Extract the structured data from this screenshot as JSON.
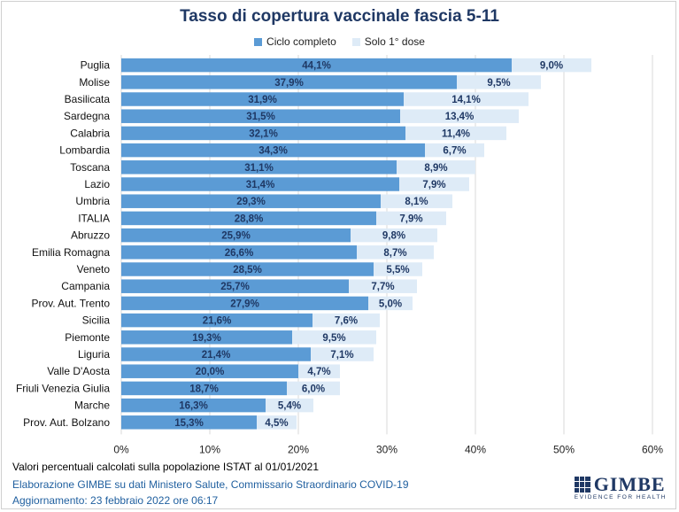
{
  "chart_data": {
    "type": "bar",
    "orientation": "horizontal",
    "stacked": true,
    "title": "Tasso di copertura vaccinale fascia 5-11",
    "categories": [
      "Puglia",
      "Molise",
      "Basilicata",
      "Sardegna",
      "Calabria",
      "Lombardia",
      "Toscana",
      "Lazio",
      "Umbria",
      "ITALIA",
      "Abruzzo",
      "Emilia Romagna",
      "Veneto",
      "Campania",
      "Prov. Aut. Trento",
      "Sicilia",
      "Piemonte",
      "Liguria",
      "Valle D'Aosta",
      "Friuli Venezia Giulia",
      "Marche",
      "Prov. Aut. Bolzano"
    ],
    "series": [
      {
        "name": "Ciclo completo",
        "color": "#5b9bd5",
        "values": [
          44.1,
          37.9,
          31.9,
          31.5,
          32.1,
          34.3,
          31.1,
          31.4,
          29.3,
          28.8,
          25.9,
          26.6,
          28.5,
          25.7,
          27.9,
          21.6,
          19.3,
          21.4,
          20.0,
          18.7,
          16.3,
          15.3
        ],
        "labels": [
          "44,1%",
          "37,9%",
          "31,9%",
          "31,5%",
          "32,1%",
          "34,3%",
          "31,1%",
          "31,4%",
          "29,3%",
          "28,8%",
          "25,9%",
          "26,6%",
          "28,5%",
          "25,7%",
          "27,9%",
          "21,6%",
          "19,3%",
          "21,4%",
          "20,0%",
          "18,7%",
          "16,3%",
          "15,3%"
        ]
      },
      {
        "name": "Solo 1° dose",
        "color": "#deebf7",
        "values": [
          9.0,
          9.5,
          14.1,
          13.4,
          11.4,
          6.7,
          8.9,
          7.9,
          8.1,
          7.9,
          9.8,
          8.7,
          5.5,
          7.7,
          5.0,
          7.6,
          9.5,
          7.1,
          4.7,
          6.0,
          5.4,
          4.5
        ],
        "labels": [
          "9,0%",
          "9,5%",
          "14,1%",
          "13,4%",
          "11,4%",
          "6,7%",
          "8,9%",
          "7,9%",
          "8,1%",
          "7,9%",
          "9,8%",
          "8,7%",
          "5,5%",
          "7,7%",
          "5,0%",
          "7,6%",
          "9,5%",
          "7,1%",
          "4,7%",
          "6,0%",
          "5,4%",
          "4,5%"
        ]
      }
    ],
    "xlim": [
      0,
      60
    ],
    "xticks": [
      "0%",
      "10%",
      "20%",
      "30%",
      "40%",
      "50%",
      "60%"
    ],
    "xtick_values": [
      0,
      10,
      20,
      30,
      40,
      50,
      60
    ],
    "grid": true,
    "legend_position": "top"
  },
  "footer": {
    "note": "Valori percentuali calcolati sulla popolazione ISTAT al 01/01/2021",
    "source": "Elaborazione GIMBE su dati Ministero Salute, Commissario Straordinario COVID-19",
    "updated": "Aggiornamento: 23 febbraio 2022 ore 06:17"
  },
  "logo": {
    "name": "GIMBE",
    "tagline": "EVIDENCE FOR HEALTH"
  },
  "colors": {
    "title": "#1f3864",
    "label_on_dark": "#1f3864",
    "source_text": "#1f5f9f"
  }
}
